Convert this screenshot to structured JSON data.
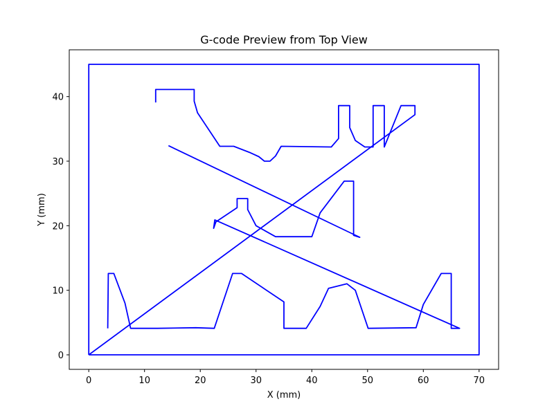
{
  "chart_data": {
    "type": "line",
    "title": "G-code Preview from Top View",
    "xlabel": "X (mm)",
    "ylabel": "Y (mm)",
    "xlim": [
      -3.5,
      73.5
    ],
    "ylim": [
      -2.25,
      47.25
    ],
    "xticks": [
      0,
      10,
      20,
      30,
      40,
      50,
      60,
      70
    ],
    "yticks": [
      0,
      10,
      20,
      30,
      40
    ],
    "grid": false,
    "line_color": "#0000ff",
    "series": [
      {
        "values": [
          {
            "x": 0,
            "y": 0
          },
          {
            "x": 0,
            "y": 45
          },
          {
            "x": 70,
            "y": 45
          },
          {
            "x": 70,
            "y": 0
          },
          {
            "x": 0,
            "y": 0
          }
        ]
      },
      {
        "values": [
          {
            "x": 0,
            "y": 0
          },
          {
            "x": 58.5,
            "y": 37.2
          },
          {
            "x": 58.5,
            "y": 38.6
          },
          {
            "x": 56,
            "y": 38.6
          },
          {
            "x": 53,
            "y": 32.2
          },
          {
            "x": 53,
            "y": 38.6
          },
          {
            "x": 51,
            "y": 38.6
          },
          {
            "x": 51,
            "y": 32.2
          },
          {
            "x": 49.5,
            "y": 32.2
          },
          {
            "x": 47.8,
            "y": 33.2
          },
          {
            "x": 46.8,
            "y": 35.2
          },
          {
            "x": 46.8,
            "y": 38.6
          },
          {
            "x": 44.8,
            "y": 38.6
          },
          {
            "x": 44.8,
            "y": 33.5
          },
          {
            "x": 43.5,
            "y": 32.2
          },
          {
            "x": 34.5,
            "y": 32.3
          },
          {
            "x": 33.5,
            "y": 30.8
          },
          {
            "x": 32.5,
            "y": 30
          },
          {
            "x": 31.5,
            "y": 30
          },
          {
            "x": 30.5,
            "y": 30.7
          },
          {
            "x": 29,
            "y": 31.3
          },
          {
            "x": 26,
            "y": 32.3
          },
          {
            "x": 23.5,
            "y": 32.3
          },
          {
            "x": 19.5,
            "y": 37.5
          },
          {
            "x": 18.9,
            "y": 39.3
          },
          {
            "x": 18.9,
            "y": 41.1
          },
          {
            "x": 12,
            "y": 41.1
          },
          {
            "x": 12,
            "y": 39.1
          }
        ]
      },
      {
        "values": [
          {
            "x": 14.3,
            "y": 32.4
          },
          {
            "x": 48.6,
            "y": 18.2
          },
          {
            "x": 47.5,
            "y": 18.5
          },
          {
            "x": 47.5,
            "y": 26.9
          },
          {
            "x": 45.8,
            "y": 26.9
          },
          {
            "x": 41.5,
            "y": 22
          },
          {
            "x": 40,
            "y": 18.3
          },
          {
            "x": 33.5,
            "y": 18.3
          },
          {
            "x": 30,
            "y": 20
          },
          {
            "x": 28.5,
            "y": 22.5
          },
          {
            "x": 28.5,
            "y": 24.2
          },
          {
            "x": 26.6,
            "y": 24.2
          },
          {
            "x": 26.6,
            "y": 22.8
          },
          {
            "x": 22.8,
            "y": 20.6
          },
          {
            "x": 22.4,
            "y": 19.6
          },
          {
            "x": 22.6,
            "y": 20.9
          },
          {
            "x": 66.5,
            "y": 4.1
          },
          {
            "x": 65,
            "y": 4.1
          },
          {
            "x": 65,
            "y": 12.6
          },
          {
            "x": 63.2,
            "y": 12.6
          },
          {
            "x": 60,
            "y": 7.8
          },
          {
            "x": 58.7,
            "y": 4.2
          },
          {
            "x": 50.1,
            "y": 4.1
          },
          {
            "x": 47.8,
            "y": 10
          },
          {
            "x": 46.3,
            "y": 11
          },
          {
            "x": 43,
            "y": 10.3
          },
          {
            "x": 41.5,
            "y": 7.5
          },
          {
            "x": 39,
            "y": 4.1
          },
          {
            "x": 35,
            "y": 4.1
          },
          {
            "x": 35,
            "y": 8.2
          },
          {
            "x": 27.4,
            "y": 12.6
          },
          {
            "x": 25.8,
            "y": 12.6
          },
          {
            "x": 22.5,
            "y": 4.1
          },
          {
            "x": 19.2,
            "y": 4.2
          },
          {
            "x": 12.3,
            "y": 4.1
          },
          {
            "x": 7.5,
            "y": 4.1
          },
          {
            "x": 6.5,
            "y": 8
          },
          {
            "x": 4.5,
            "y": 12.6
          },
          {
            "x": 3.5,
            "y": 12.6
          },
          {
            "x": 3.4,
            "y": 4.1
          }
        ]
      }
    ]
  }
}
